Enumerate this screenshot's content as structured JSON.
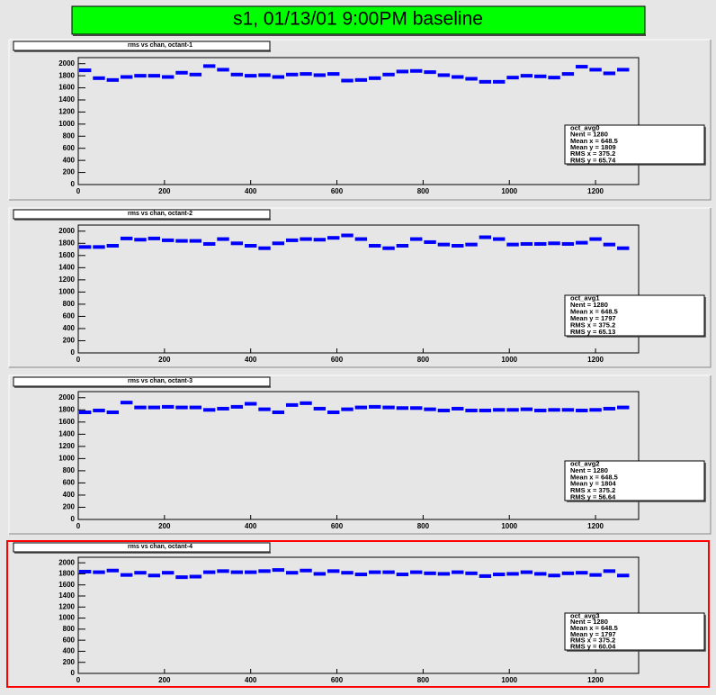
{
  "title": "s1, 01/13/01 9:00PM baseline",
  "chart_data": [
    {
      "type": "scatter",
      "title": "rms vs chan, octant-1",
      "color": "#0000ff",
      "x": [
        16,
        48,
        80,
        112,
        144,
        176,
        208,
        240,
        272,
        304,
        336,
        368,
        400,
        432,
        464,
        496,
        528,
        560,
        592,
        624,
        656,
        688,
        720,
        752,
        784,
        816,
        848,
        880,
        912,
        944,
        976,
        1008,
        1040,
        1072,
        1104,
        1136,
        1168,
        1200,
        1232,
        1264
      ],
      "values": [
        1890,
        1760,
        1730,
        1780,
        1800,
        1800,
        1780,
        1850,
        1820,
        1960,
        1900,
        1820,
        1800,
        1810,
        1780,
        1820,
        1830,
        1810,
        1830,
        1720,
        1730,
        1760,
        1820,
        1870,
        1880,
        1860,
        1810,
        1780,
        1750,
        1700,
        1700,
        1770,
        1800,
        1790,
        1770,
        1830,
        1950,
        1900,
        1840,
        1900
      ],
      "xlim": [
        0,
        1300
      ],
      "ylim": [
        0,
        2100
      ],
      "xticks": [
        0,
        200,
        400,
        600,
        800,
        1000,
        1200
      ],
      "yticks": [
        0,
        200,
        400,
        600,
        800,
        1000,
        1200,
        1400,
        1600,
        1800,
        2000
      ],
      "stats": [
        "oct_avg0",
        "Nent = 1280",
        "Mean x = 648.5",
        "Mean y = 1809",
        "RMS x = 375.2",
        "RMS y = 65.74"
      ]
    },
    {
      "type": "scatter",
      "title": "rms vs chan, octant-2",
      "color": "#0000ff",
      "x": [
        16,
        48,
        80,
        112,
        144,
        176,
        208,
        240,
        272,
        304,
        336,
        368,
        400,
        432,
        464,
        496,
        528,
        560,
        592,
        624,
        656,
        688,
        720,
        752,
        784,
        816,
        848,
        880,
        912,
        944,
        976,
        1008,
        1040,
        1072,
        1104,
        1136,
        1168,
        1200,
        1232,
        1264
      ],
      "values": [
        1740,
        1740,
        1760,
        1880,
        1860,
        1880,
        1850,
        1840,
        1840,
        1790,
        1870,
        1800,
        1760,
        1720,
        1800,
        1850,
        1870,
        1860,
        1890,
        1930,
        1870,
        1760,
        1720,
        1760,
        1870,
        1820,
        1780,
        1760,
        1780,
        1900,
        1870,
        1780,
        1790,
        1790,
        1800,
        1790,
        1810,
        1870,
        1780,
        1720
      ],
      "xlim": [
        0,
        1300
      ],
      "ylim": [
        0,
        2100
      ],
      "xticks": [
        0,
        200,
        400,
        600,
        800,
        1000,
        1200
      ],
      "yticks": [
        0,
        200,
        400,
        600,
        800,
        1000,
        1200,
        1400,
        1600,
        1800,
        2000
      ],
      "stats": [
        "oct_avg1",
        "Nent = 1280",
        "Mean x = 648.5",
        "Mean y = 1797",
        "RMS x = 375.2",
        "RMS y = 65.13"
      ]
    },
    {
      "type": "scatter",
      "title": "rms vs chan, octant-3",
      "color": "#0000ff",
      "x": [
        16,
        48,
        80,
        112,
        144,
        176,
        208,
        240,
        272,
        304,
        336,
        368,
        400,
        432,
        464,
        496,
        528,
        560,
        592,
        624,
        656,
        688,
        720,
        752,
        784,
        816,
        848,
        880,
        912,
        944,
        976,
        1008,
        1040,
        1072,
        1104,
        1136,
        1168,
        1200,
        1232,
        1264
      ],
      "values": [
        1760,
        1790,
        1760,
        1920,
        1840,
        1840,
        1850,
        1840,
        1840,
        1800,
        1820,
        1850,
        1900,
        1810,
        1760,
        1880,
        1910,
        1820,
        1760,
        1810,
        1840,
        1850,
        1840,
        1830,
        1830,
        1810,
        1790,
        1820,
        1790,
        1790,
        1800,
        1800,
        1810,
        1790,
        1800,
        1800,
        1790,
        1800,
        1820,
        1840
      ],
      "xlim": [
        0,
        1300
      ],
      "ylim": [
        0,
        2100
      ],
      "xticks": [
        0,
        200,
        400,
        600,
        800,
        1000,
        1200
      ],
      "yticks": [
        0,
        200,
        400,
        600,
        800,
        1000,
        1200,
        1400,
        1600,
        1800,
        2000
      ],
      "stats": [
        "oct_avg2",
        "Nent = 1280",
        "Mean x = 648.5",
        "Mean y = 1804",
        "RMS x = 375.2",
        "RMS y = 56.64"
      ]
    },
    {
      "type": "scatter",
      "title": "rms vs chan, octant-4",
      "color": "#0000ff",
      "x": [
        16,
        48,
        80,
        112,
        144,
        176,
        208,
        240,
        272,
        304,
        336,
        368,
        400,
        432,
        464,
        496,
        528,
        560,
        592,
        624,
        656,
        688,
        720,
        752,
        784,
        816,
        848,
        880,
        912,
        944,
        976,
        1008,
        1040,
        1072,
        1104,
        1136,
        1168,
        1200,
        1232,
        1264
      ],
      "values": [
        1840,
        1830,
        1860,
        1780,
        1820,
        1770,
        1820,
        1740,
        1750,
        1830,
        1850,
        1830,
        1830,
        1850,
        1870,
        1820,
        1860,
        1800,
        1850,
        1820,
        1790,
        1830,
        1830,
        1790,
        1830,
        1810,
        1800,
        1830,
        1810,
        1760,
        1790,
        1800,
        1830,
        1800,
        1770,
        1810,
        1820,
        1780,
        1850,
        1770
      ],
      "xlim": [
        0,
        1300
      ],
      "ylim": [
        0,
        2100
      ],
      "xticks": [
        0,
        200,
        400,
        600,
        800,
        1000,
        1200
      ],
      "yticks": [
        0,
        200,
        400,
        600,
        800,
        1000,
        1200,
        1400,
        1600,
        1800,
        2000
      ],
      "stats": [
        "oct_avg3",
        "Nent = 1280",
        "Mean x = 648.5",
        "Mean y = 1797",
        "RMS x = 375.2",
        "RMS y = 60.04"
      ]
    }
  ]
}
